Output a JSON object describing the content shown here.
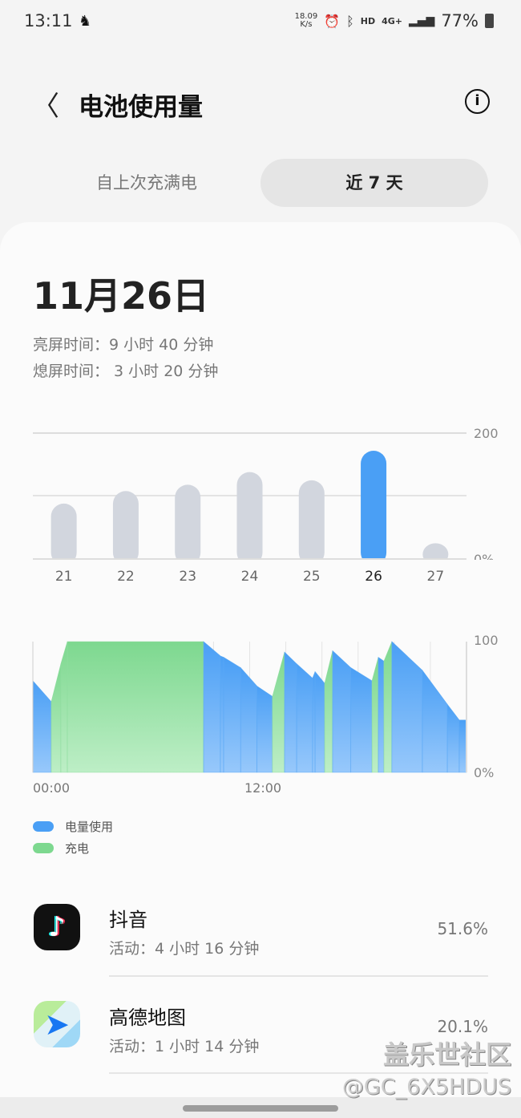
{
  "status_bar": {
    "time": "13:11",
    "net_speed_value": "18.09",
    "net_speed_unit": "K/s",
    "hd": "HD",
    "network": "4G+",
    "battery": "77%"
  },
  "header": {
    "title": "电池使用量"
  },
  "tabs": [
    {
      "label": "自上次充满电",
      "active": false
    },
    {
      "label": "近 7 天",
      "active": true
    }
  ],
  "summary": {
    "date": "11月26日",
    "screen_on": "亮屏时间：9 小时 40 分钟",
    "screen_off": "熄屏时间： 3 小时 20 分钟"
  },
  "chart_data": [
    {
      "type": "bar",
      "categories": [
        "21",
        "22",
        "23",
        "24",
        "25",
        "26",
        "27"
      ],
      "values": [
        88,
        108,
        118,
        138,
        125,
        172,
        25
      ],
      "selected": "26",
      "ylim": [
        0,
        200
      ],
      "ytick_labels": [
        "200",
        "0%"
      ],
      "grid": true,
      "colors": {
        "normal": "#d2d6de",
        "selected": "#4a9ff5"
      }
    },
    {
      "type": "area",
      "xtick_labels": [
        "00:00",
        "12:00"
      ],
      "ytick_labels": [
        "100",
        "0%"
      ],
      "ylim": [
        0,
        100
      ],
      "xlim_hours": [
        0,
        24
      ],
      "points": [
        [
          0,
          70,
          "use"
        ],
        [
          1.02,
          54,
          "use"
        ],
        [
          1.55,
          83,
          "charge"
        ],
        [
          1.91,
          100,
          "charge"
        ],
        [
          9.45,
          100,
          "charge"
        ],
        [
          10.38,
          89,
          "use"
        ],
        [
          10.56,
          88,
          "use"
        ],
        [
          11.5,
          80,
          "use"
        ],
        [
          12.4,
          66,
          "use"
        ],
        [
          13.26,
          58,
          "use"
        ],
        [
          13.93,
          92,
          "charge"
        ],
        [
          14.6,
          83,
          "use"
        ],
        [
          15.48,
          72,
          "use"
        ],
        [
          15.62,
          77,
          "use"
        ],
        [
          16.15,
          68,
          "use"
        ],
        [
          16.59,
          93,
          "charge"
        ],
        [
          17.6,
          80,
          "use"
        ],
        [
          18.77,
          70,
          "use"
        ],
        [
          19.12,
          88,
          "charge"
        ],
        [
          19.43,
          85,
          "use"
        ],
        [
          19.87,
          100,
          "charge"
        ],
        [
          21.56,
          78,
          "use"
        ],
        [
          22.94,
          52,
          "use"
        ],
        [
          23.6,
          40,
          "use"
        ],
        [
          24,
          40,
          "use"
        ]
      ],
      "legend": [
        {
          "name": "电量使用",
          "color": "#4a9ff5"
        },
        {
          "name": "充电",
          "color": "#7dd88f"
        }
      ]
    }
  ],
  "apps": [
    {
      "name": "抖音",
      "activity": "活动：4 小时 16 分钟",
      "percent": "51.6%",
      "icon": "tiktok-icon"
    },
    {
      "name": "高德地图",
      "activity": "活动：1 小时 14 分钟",
      "percent": "20.1%",
      "icon": "amap-icon"
    }
  ],
  "watermark": {
    "line1": "盖乐世社区",
    "line2": "@GC_6X5HDUS"
  }
}
